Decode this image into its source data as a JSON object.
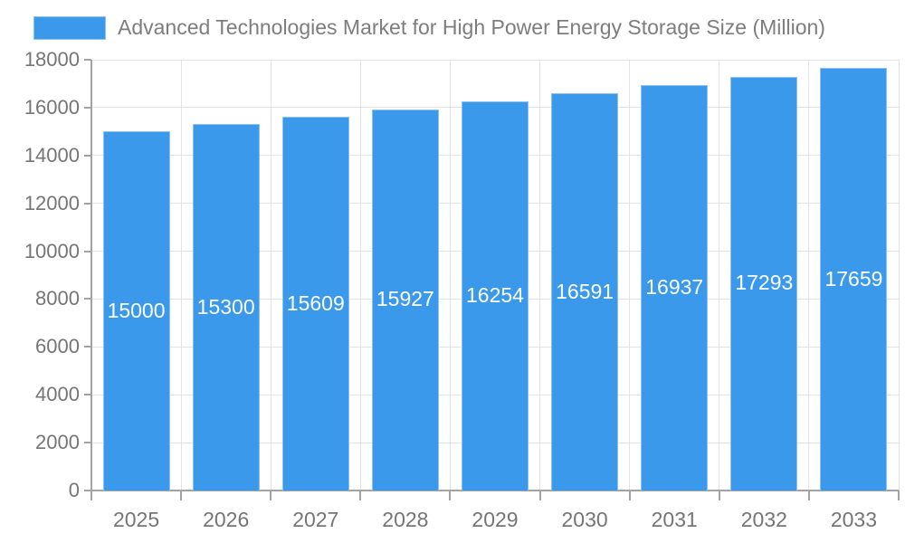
{
  "chart_data": {
    "type": "bar",
    "title": "Advanced Technologies Market for High Power Energy Storage Size (Million)",
    "categories": [
      "2025",
      "2026",
      "2027",
      "2028",
      "2029",
      "2030",
      "2031",
      "2032",
      "2033"
    ],
    "values": [
      15000,
      15300,
      15609,
      15927,
      16254,
      16591,
      16937,
      17293,
      17659
    ],
    "series": [
      {
        "name": "Advanced Technologies Market for High Power Energy Storage Size (Million)",
        "values": [
          15000,
          15300,
          15609,
          15927,
          16254,
          16591,
          16937,
          17293,
          17659
        ]
      }
    ],
    "xlabel": "",
    "ylabel": "",
    "ylim": [
      0,
      18000
    ],
    "y_ticks": [
      0,
      2000,
      4000,
      6000,
      8000,
      10000,
      12000,
      14000,
      16000,
      18000
    ],
    "grid": true,
    "value_labels": "centered-inside-bars",
    "legend_position": "top-left",
    "colors": {
      "bar_fill": "#3b99ec",
      "bar_border": "#8fc1f2",
      "gridline": "#e3e3e3",
      "axis_line": "#a3a3a3",
      "tick_mark": "#a3a3a3",
      "tick_text": "#757575",
      "title_text": "#7d7d7d",
      "value_text": "#ffffff",
      "background": "#ffffff"
    }
  }
}
